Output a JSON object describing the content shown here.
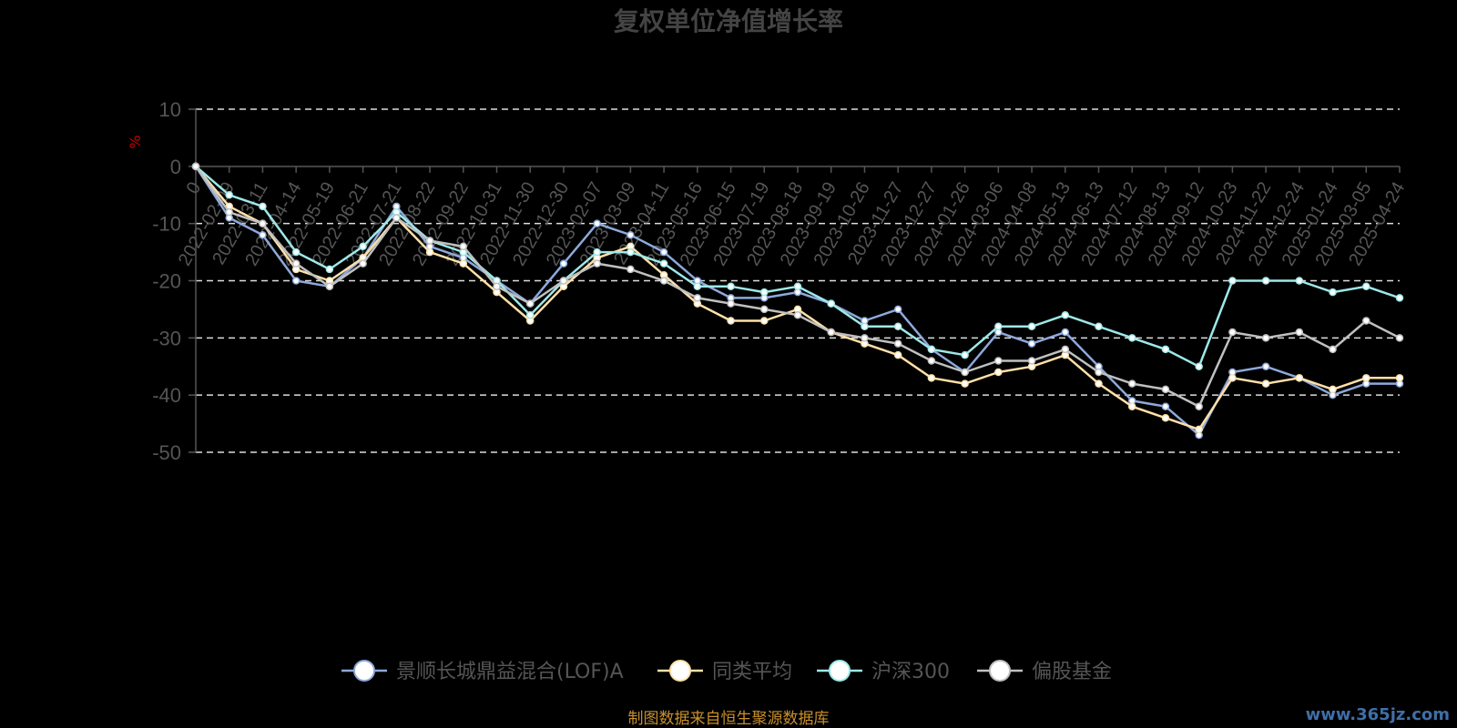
{
  "chart_data": {
    "type": "line",
    "title": "复权单位净值增长率",
    "ylabel": "%",
    "ylim": [
      -50,
      10
    ],
    "y_ticks": [
      10,
      0,
      -10,
      -20,
      -30,
      -40,
      -50
    ],
    "grid": true,
    "legend_position": "bottom-center",
    "x": [
      "0",
      "2022-02-09",
      "2022-03-11",
      "2022-04-14",
      "2022-05-19",
      "2022-06-21",
      "2022-07-21",
      "2022-08-22",
      "2022-09-22",
      "2022-10-31",
      "2022-11-30",
      "2022-12-30",
      "2023-02-07",
      "2023-03-09",
      "2023-04-11",
      "2023-05-16",
      "2023-06-15",
      "2023-07-19",
      "2023-08-18",
      "2023-09-19",
      "2023-10-26",
      "2023-11-27",
      "2023-12-27",
      "2024-01-26",
      "2024-03-06",
      "2024-04-08",
      "2024-05-13",
      "2024-06-13",
      "2024-07-12",
      "2024-08-13",
      "2024-09-12",
      "2024-10-23",
      "2024-11-22",
      "2024-12-24",
      "2025-01-24",
      "2025-03-05",
      "2025-04-24"
    ],
    "series": [
      {
        "name": "景顺长城鼎益混合(LOF)A",
        "color": "#8da9db",
        "values": [
          0,
          -9,
          -12,
          -20,
          -21,
          -16,
          -7,
          -14,
          -16,
          -20,
          -24,
          -17,
          -10,
          -12,
          -15,
          -20,
          -23,
          -23,
          -22,
          -24,
          -27,
          -25,
          -32,
          -36,
          -29,
          -31,
          -29,
          -35,
          -41,
          -42,
          -47,
          -36,
          -35,
          -37,
          -40,
          -38,
          -38
        ]
      },
      {
        "name": "同类平均",
        "color": "#ffe0a8",
        "values": [
          0,
          -7,
          -10,
          -18,
          -20,
          -16,
          -9,
          -15,
          -17,
          -22,
          -27,
          -21,
          -16,
          -14,
          -19,
          -24,
          -27,
          -27,
          -25,
          -29,
          -31,
          -33,
          -37,
          -38,
          -36,
          -35,
          -33,
          -38,
          -42,
          -44,
          -46,
          -37,
          -38,
          -37,
          -39,
          -37,
          -37
        ]
      },
      {
        "name": "沪深300",
        "color": "#9ee8e8",
        "values": [
          0,
          -5,
          -7,
          -15,
          -18,
          -14,
          -8,
          -13,
          -15,
          -20,
          -26,
          -20,
          -15,
          -15,
          -17,
          -21,
          -21,
          -22,
          -21,
          -24,
          -28,
          -28,
          -32,
          -33,
          -28,
          -28,
          -26,
          -28,
          -30,
          -32,
          -35,
          -20,
          -20,
          -20,
          -22,
          -21,
          -23
        ]
      },
      {
        "name": "偏股基金",
        "color": "#c0c0c0",
        "values": [
          0,
          -8,
          -10,
          -17,
          -21,
          -17,
          -9,
          -13,
          -14,
          -21,
          -24,
          -20,
          -17,
          -18,
          -20,
          -23,
          -24,
          -25,
          -26,
          -29,
          -30,
          -31,
          -34,
          -36,
          -34,
          -34,
          -32,
          -36,
          -38,
          -39,
          -42,
          -29,
          -30,
          -29,
          -32,
          -27,
          -30
        ]
      }
    ]
  },
  "source_note": "制图数据来自恒生聚源数据库",
  "watermark": "www.365jz.com"
}
